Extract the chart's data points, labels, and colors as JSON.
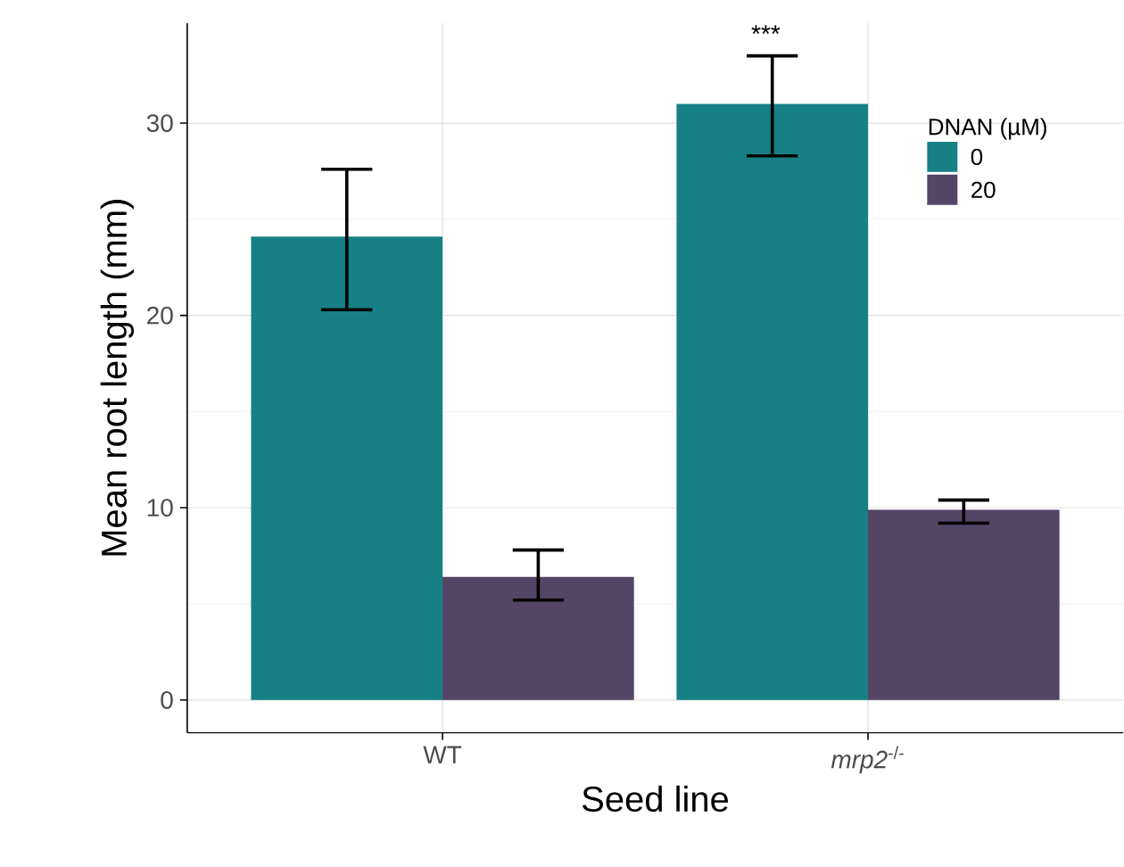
{
  "chart_data": {
    "type": "bar",
    "xlabel": "Seed line",
    "ylabel": "Mean root length (mm)",
    "legend_title": "DNAN (µM)",
    "categories": [
      "WT",
      "*mrp2*$^{-/-}$"
    ],
    "series": [
      {
        "name": "0",
        "color": "#168085",
        "values": [
          24.1,
          31.0
        ],
        "errors": [
          [
            20.3,
            27.6
          ],
          [
            28.3,
            33.5
          ]
        ]
      },
      {
        "name": "20",
        "color": "#534566",
        "values": [
          6.4,
          9.9
        ],
        "errors": [
          [
            5.2,
            7.8
          ],
          [
            9.2,
            10.4
          ]
        ]
      }
    ],
    "ylim": [
      -1.7,
      35.2
    ],
    "yticks": [
      0,
      10,
      20,
      30
    ],
    "grid": true,
    "legend": "top right",
    "annotations": [
      "***"
    ]
  }
}
